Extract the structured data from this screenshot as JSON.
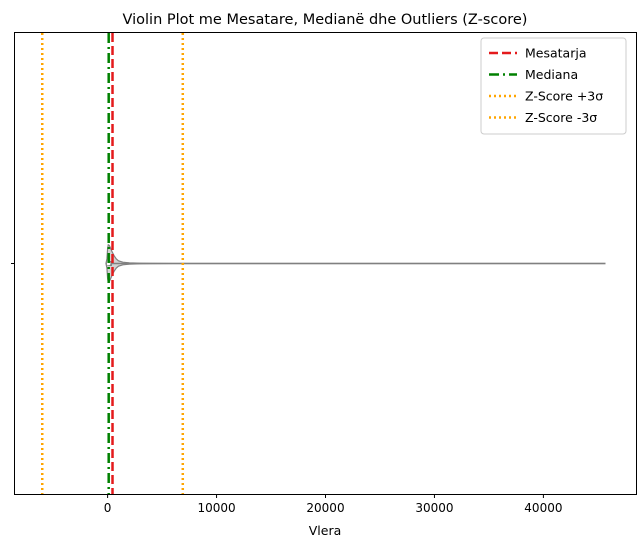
{
  "chart_data": {
    "type": "violin",
    "orientation": "horizontal",
    "title": "Violin Plot me Mesatare, Medianë dhe Outliers (Z-score)",
    "xlabel": "Vlera",
    "ylabel": "",
    "xlim": [
      -8500,
      48500
    ],
    "xticks": [
      0,
      10000,
      20000,
      30000,
      40000
    ],
    "xtick_labels": [
      "0",
      "10000",
      "20000",
      "30000",
      "40000"
    ],
    "grid": false,
    "legend_position": "top-right",
    "violin": {
      "data_min": -100,
      "data_max": 45700,
      "median": 100,
      "quartiles": [
        -10,
        400
      ],
      "fill_color": "#d3d3d3",
      "edge_color": "#808080",
      "density_profile": [
        {
          "x": -150,
          "half_width": 0.0
        },
        {
          "x": -60,
          "half_width": 0.2
        },
        {
          "x": 0,
          "half_width": 0.62
        },
        {
          "x": 60,
          "half_width": 0.78
        },
        {
          "x": 150,
          "half_width": 0.76
        },
        {
          "x": 250,
          "half_width": 0.66
        },
        {
          "x": 400,
          "half_width": 0.5
        },
        {
          "x": 600,
          "half_width": 0.32
        },
        {
          "x": 800,
          "half_width": 0.19
        },
        {
          "x": 1000,
          "half_width": 0.11
        },
        {
          "x": 1400,
          "half_width": 0.055
        },
        {
          "x": 2000,
          "half_width": 0.028
        },
        {
          "x": 3000,
          "half_width": 0.012
        },
        {
          "x": 4000,
          "half_width": 0.005
        },
        {
          "x": 6000,
          "half_width": 0.002
        },
        {
          "x": 10000,
          "half_width": 0.0008
        },
        {
          "x": 45700,
          "half_width": 0.0
        }
      ]
    },
    "series": [
      {
        "name": "Mesatarja",
        "value": 450,
        "color": "#e41a1c",
        "style": "dashed"
      },
      {
        "name": "Mediana",
        "value": 100,
        "color": "#008000",
        "style": "dashdot"
      },
      {
        "name": "Z-Score +3σ",
        "value": 6900,
        "color": "#ffa500",
        "style": "dotted"
      },
      {
        "name": "Z-Score -3σ",
        "value": -6000,
        "color": "#ffa500",
        "style": "dotted"
      }
    ]
  }
}
